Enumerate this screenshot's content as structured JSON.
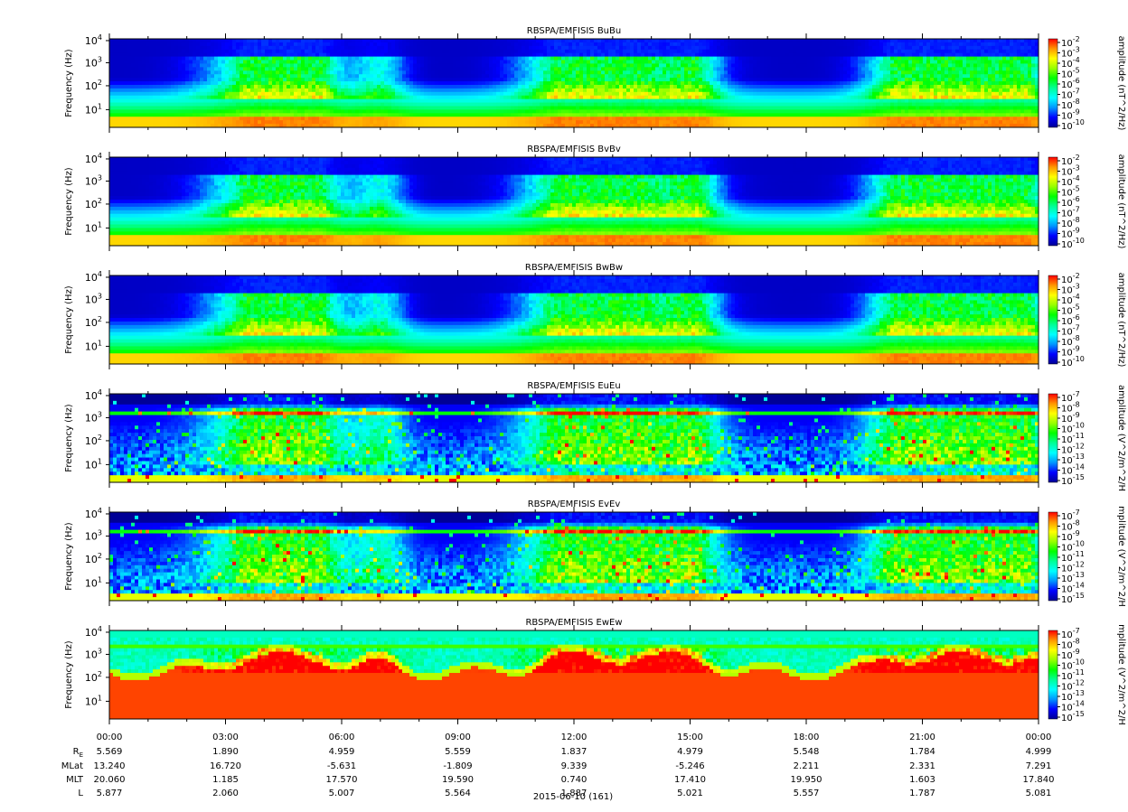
{
  "chart_data": {
    "type": "heatmap",
    "date_label": "2015-06-10 (161)",
    "x_tick_labels": [
      "00:00",
      "03:00",
      "06:00",
      "09:00",
      "12:00",
      "15:00",
      "18:00",
      "21:00",
      "00:00"
    ],
    "ephemeris": [
      {
        "label": "R_E",
        "values": [
          "5.569",
          "1.890",
          "4.959",
          "5.559",
          "1.837",
          "4.979",
          "5.548",
          "1.784",
          "4.999"
        ]
      },
      {
        "label": "MLat",
        "values": [
          "13.240",
          "16.720",
          "-5.631",
          "-1.809",
          "9.339",
          "-5.246",
          "2.211",
          "2.331",
          "7.291"
        ]
      },
      {
        "label": "MLT",
        "values": [
          "20.060",
          "1.185",
          "17.570",
          "19.590",
          "0.740",
          "17.410",
          "19.950",
          "1.603",
          "17.840"
        ]
      },
      {
        "label": "L",
        "values": [
          "5.877",
          "2.060",
          "5.007",
          "5.564",
          "1.887",
          "5.021",
          "5.557",
          "1.787",
          "5.081"
        ]
      }
    ],
    "y_axis": {
      "label": "Frequency (Hz)",
      "scale": "log",
      "ticks": [
        {
          "base": "10",
          "exp": "1"
        },
        {
          "base": "10",
          "exp": "2"
        },
        {
          "base": "10",
          "exp": "3"
        },
        {
          "base": "10",
          "exp": "4"
        }
      ]
    },
    "colormap": [
      "#000096",
      "#0000ff",
      "#0096ff",
      "#00ffff",
      "#00ff96",
      "#00ff00",
      "#96ff00",
      "#ffff00",
      "#ff9600",
      "#ff0000"
    ],
    "panels": [
      {
        "title": "RBSPA/EMFISIS  BuBu",
        "colorbar_label": "amplitude (nT^2/Hz)",
        "kind": "B",
        "cb_ticks": [
          {
            "b": "10",
            "e": "-2"
          },
          {
            "b": "10",
            "e": "-3"
          },
          {
            "b": "10",
            "e": "-4"
          },
          {
            "b": "10",
            "e": "-5"
          },
          {
            "b": "10",
            "e": "-6"
          },
          {
            "b": "10",
            "e": "-7"
          },
          {
            "b": "10",
            "e": "-8"
          },
          {
            "b": "10",
            "e": "-9"
          },
          {
            "b": "10",
            "e": "-10"
          }
        ]
      },
      {
        "title": "RBSPA/EMFISIS  BvBv",
        "colorbar_label": "amplitude (nT^2/Hz)",
        "kind": "B",
        "cb_ticks": [
          {
            "b": "10",
            "e": "-2"
          },
          {
            "b": "10",
            "e": "-3"
          },
          {
            "b": "10",
            "e": "-4"
          },
          {
            "b": "10",
            "e": "-5"
          },
          {
            "b": "10",
            "e": "-6"
          },
          {
            "b": "10",
            "e": "-7"
          },
          {
            "b": "10",
            "e": "-8"
          },
          {
            "b": "10",
            "e": "-9"
          },
          {
            "b": "10",
            "e": "-10"
          }
        ]
      },
      {
        "title": "RBSPA/EMFISIS  BwBw",
        "colorbar_label": "amplitude (nT^2/Hz)",
        "kind": "B",
        "cb_ticks": [
          {
            "b": "10",
            "e": "-2"
          },
          {
            "b": "10",
            "e": "-3"
          },
          {
            "b": "10",
            "e": "-4"
          },
          {
            "b": "10",
            "e": "-5"
          },
          {
            "b": "10",
            "e": "-6"
          },
          {
            "b": "10",
            "e": "-7"
          },
          {
            "b": "10",
            "e": "-8"
          },
          {
            "b": "10",
            "e": "-9"
          },
          {
            "b": "10",
            "e": "-10"
          }
        ]
      },
      {
        "title": "RBSPA/EMFISIS  EuEu",
        "colorbar_label": "amplitude (V^2/m^2/H",
        "kind": "E",
        "cb_ticks": [
          {
            "b": "10",
            "e": "-7"
          },
          {
            "b": "10",
            "e": "-8"
          },
          {
            "b": "10",
            "e": "-9"
          },
          {
            "b": "10",
            "e": "-10"
          },
          {
            "b": "10",
            "e": "-11"
          },
          {
            "b": "10",
            "e": "-12"
          },
          {
            "b": "10",
            "e": "-13"
          },
          {
            "b": "10",
            "e": "-14"
          },
          {
            "b": "10",
            "e": "-15"
          }
        ]
      },
      {
        "title": "RBSPA/EMFISIS  EvEv",
        "colorbar_label": "mplitude (V^2/m^2/H",
        "kind": "E",
        "cb_ticks": [
          {
            "b": "10",
            "e": "-7"
          },
          {
            "b": "10",
            "e": "-8"
          },
          {
            "b": "10",
            "e": "-9"
          },
          {
            "b": "10",
            "e": "-10"
          },
          {
            "b": "10",
            "e": "-11"
          },
          {
            "b": "10",
            "e": "-12"
          },
          {
            "b": "10",
            "e": "-13"
          },
          {
            "b": "10",
            "e": "-14"
          },
          {
            "b": "10",
            "e": "-15"
          }
        ]
      },
      {
        "title": "RBSPA/EMFISIS  EwEw",
        "colorbar_label": "mplitude (V^2/m^2/H",
        "kind": "Ew",
        "cb_ticks": [
          {
            "b": "10",
            "e": "-7"
          },
          {
            "b": "10",
            "e": "-8"
          },
          {
            "b": "10",
            "e": "-9"
          },
          {
            "b": "10",
            "e": "-10"
          },
          {
            "b": "10",
            "e": "-11"
          },
          {
            "b": "10",
            "e": "-12"
          },
          {
            "b": "10",
            "e": "-13"
          },
          {
            "b": "10",
            "e": "-14"
          },
          {
            "b": "10",
            "e": "-15"
          }
        ]
      }
    ]
  }
}
